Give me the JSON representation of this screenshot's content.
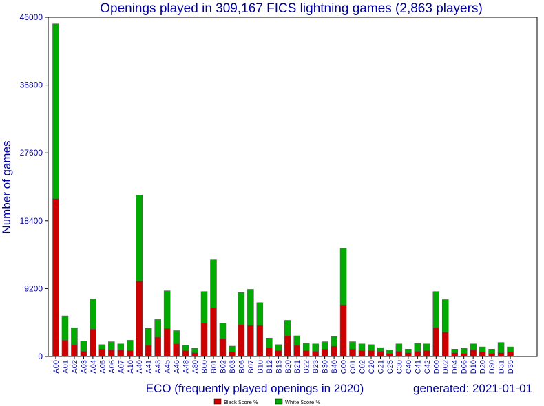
{
  "chart_data": {
    "type": "bar",
    "stacked": true,
    "title": "Openings played in 309,167 FICS lightning games (2,863 players)",
    "xlabel": "ECO (frequently played openings in 2020)",
    "ylabel": "Number of games",
    "generated": "generated: 2021-01-01",
    "ylim": [
      0,
      46000
    ],
    "yticks": [
      0,
      9200,
      18400,
      27600,
      36800,
      46000
    ],
    "ytick_labels": [
      "0",
      "9200",
      "18400",
      "27600",
      "36800",
      "46000"
    ],
    "grid": false,
    "legend_position": "bottom-center",
    "categories": [
      "A00",
      "A01",
      "A02",
      "A03",
      "A04",
      "A05",
      "A06",
      "A07",
      "A10",
      "A40",
      "A41",
      "A43",
      "A45",
      "A46",
      "A48",
      "A80",
      "B00",
      "B01",
      "B02",
      "B03",
      "B06",
      "B07",
      "B10",
      "B12",
      "B13",
      "B20",
      "B21",
      "B22",
      "B23",
      "B30",
      "B40",
      "C00",
      "C01",
      "C02",
      "C20",
      "C21",
      "C25",
      "C30",
      "C40",
      "C41",
      "C42",
      "D00",
      "D02",
      "D04",
      "D06",
      "D10",
      "D20",
      "D30",
      "D31",
      "D35"
    ],
    "series": [
      {
        "name": "Black Score %",
        "color": "#cc0000",
        "values": [
          21400,
          2200,
          1600,
          700,
          3700,
          1000,
          900,
          900,
          800,
          10200,
          1500,
          2600,
          3800,
          1700,
          800,
          500,
          4500,
          6600,
          2400,
          600,
          4300,
          4200,
          4200,
          1200,
          800,
          2800,
          1500,
          800,
          700,
          1000,
          1400,
          7000,
          1000,
          800,
          800,
          700,
          400,
          700,
          500,
          700,
          800,
          3900,
          3300,
          500,
          400,
          900,
          600,
          400,
          500,
          600
        ]
      },
      {
        "name": "White Score %",
        "color": "#00aa00",
        "values": [
          23700,
          3300,
          2300,
          1400,
          4100,
          600,
          1100,
          800,
          1400,
          11700,
          2300,
          2400,
          5100,
          1800,
          700,
          600,
          4300,
          6500,
          2100,
          800,
          4400,
          4900,
          3100,
          1300,
          800,
          2100,
          1300,
          1000,
          1000,
          1000,
          1300,
          7700,
          1000,
          900,
          800,
          500,
          500,
          1000,
          500,
          1100,
          900,
          4900,
          4400,
          500,
          700,
          800,
          700,
          600,
          1400,
          700
        ]
      }
    ]
  }
}
